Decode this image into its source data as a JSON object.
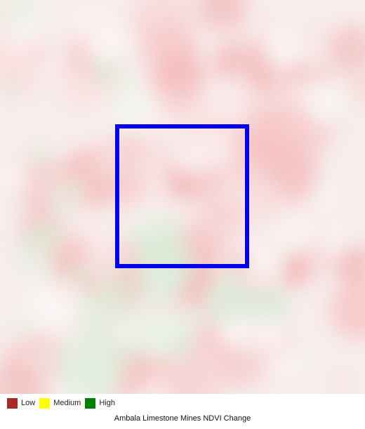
{
  "map": {
    "description_layer": "ndvi-change-raster",
    "aoi_color": "#0000ee"
  },
  "legend": {
    "items": [
      {
        "label": "Low",
        "color": "#a52a2a"
      },
      {
        "label": "Medium",
        "color": "#ffff00"
      },
      {
        "label": "High",
        "color": "#008000"
      }
    ]
  },
  "caption": "Ambala Limestone Mines NDVI Change"
}
